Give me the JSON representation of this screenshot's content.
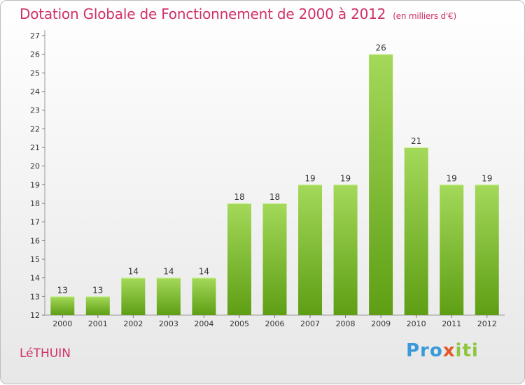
{
  "title": "Dotation Globale de Fonctionnement de 2000 à 2012",
  "subtitle": "(en milliers d'€)",
  "commune": "LéTHUIN",
  "logo": {
    "part1": "Pro",
    "part2": "x",
    "part3": "iti"
  },
  "colors": {
    "bar_top": "#a4d95a",
    "bar_bottom": "#5e9e14",
    "title": "#d0306a"
  },
  "chart_data": {
    "type": "bar",
    "categories": [
      "2000",
      "2001",
      "2002",
      "2003",
      "2004",
      "2005",
      "2006",
      "2007",
      "2008",
      "2009",
      "2010",
      "2011",
      "2012"
    ],
    "values": [
      13,
      13,
      14,
      14,
      14,
      18,
      18,
      19,
      19,
      26,
      21,
      19,
      19
    ],
    "ylim": [
      12,
      27
    ],
    "yticks": [
      12,
      13,
      14,
      15,
      16,
      17,
      18,
      19,
      20,
      21,
      22,
      23,
      24,
      25,
      26,
      27
    ],
    "grid": false,
    "data_labels": true
  }
}
